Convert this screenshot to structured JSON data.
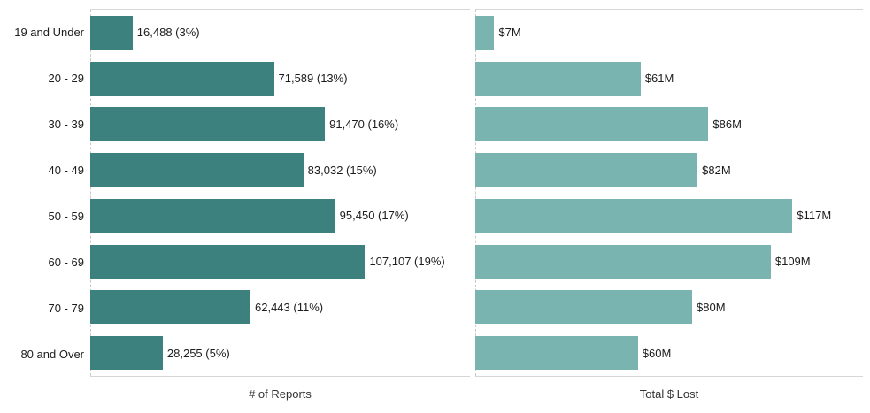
{
  "chart_data": {
    "type": "bar",
    "orientation": "horizontal",
    "grid": false,
    "legend": "none",
    "categories": [
      "19 and Under",
      "20 - 29",
      "30 - 39",
      "40 - 49",
      "50 - 59",
      "60 - 69",
      "70 - 79",
      "80 and Over"
    ],
    "series": [
      {
        "name": "# of Reports",
        "values": [
          16488,
          71589,
          91470,
          83032,
          95450,
          107107,
          62443,
          28255
        ],
        "labels": [
          "16,488 (3%)",
          "71,589 (13%)",
          "91,470 (16%)",
          "83,032 (15%)",
          "95,450 (17%)",
          "107,107 (19%)",
          "62,443 (11%)",
          "28,255 (5%)"
        ],
        "color": "#3D817E",
        "axis_max": 148000
      },
      {
        "name": "Total $ Lost",
        "values": [
          7,
          61,
          86,
          82,
          117,
          109,
          80,
          60
        ],
        "labels": [
          "$7M",
          "$61M",
          "$86M",
          "$82M",
          "$117M",
          "$109M",
          "$80M",
          "$60M"
        ],
        "color": "#79B4B0",
        "axis_max": 143
      }
    ],
    "x_axis_titles": [
      "# of Reports",
      "Total $ Lost"
    ]
  },
  "colors": {
    "background": "#ffffff",
    "panel_border": "#d6d6d6",
    "zero_line": "#c8c8c8",
    "label_text": "#1c1c1c",
    "axis_title_text": "#333333",
    "reports_bar": "#3D817E",
    "lost_bar": "#79B4B0"
  }
}
